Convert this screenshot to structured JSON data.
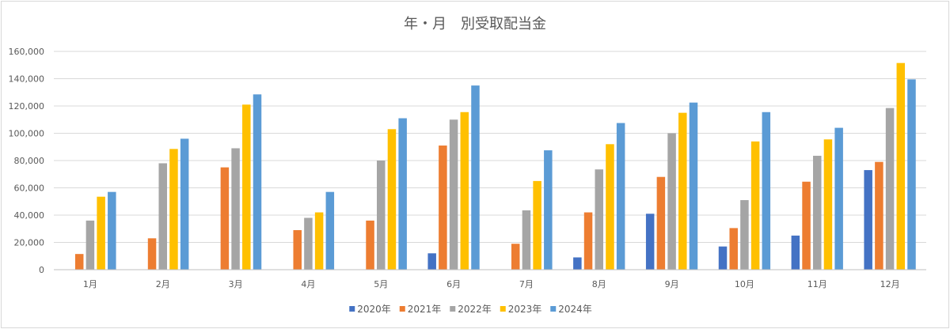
{
  "chart_data": {
    "type": "bar",
    "title": "年・月　別受取配当金",
    "categories": [
      "1月",
      "2月",
      "3月",
      "4月",
      "5月",
      "6月",
      "7月",
      "8月",
      "9月",
      "10月",
      "11月",
      "12月"
    ],
    "y_ticks": [
      "0",
      "20,000",
      "40,000",
      "60,000",
      "80,000",
      "100,000",
      "120,000",
      "140,000",
      "160,000"
    ],
    "ylim": [
      0,
      160000
    ],
    "grid": true,
    "legend_position": "bottom",
    "series": [
      {
        "name": "2020年",
        "color": "#4472c4",
        "values": [
          0,
          0,
          0,
          0,
          0,
          12000,
          0,
          9000,
          41000,
          17000,
          25000,
          73000
        ]
      },
      {
        "name": "2021年",
        "color": "#ed7d31",
        "values": [
          11500,
          23000,
          75000,
          29000,
          36000,
          91000,
          19000,
          42000,
          68000,
          30500,
          64500,
          79000
        ]
      },
      {
        "name": "2022年",
        "color": "#a5a5a5",
        "values": [
          36000,
          78000,
          89000,
          38000,
          80000,
          110000,
          43500,
          73500,
          100000,
          51000,
          83500,
          118500
        ]
      },
      {
        "name": "2023年",
        "color": "#ffc000",
        "values": [
          53500,
          88500,
          121000,
          42000,
          103000,
          115500,
          65000,
          92000,
          115000,
          94000,
          95500,
          151500
        ]
      },
      {
        "name": "2024年",
        "color": "#5b9bd5",
        "values": [
          57000,
          96000,
          128500,
          57000,
          111000,
          135000,
          87500,
          107500,
          122500,
          115500,
          104000,
          139500
        ]
      }
    ]
  }
}
